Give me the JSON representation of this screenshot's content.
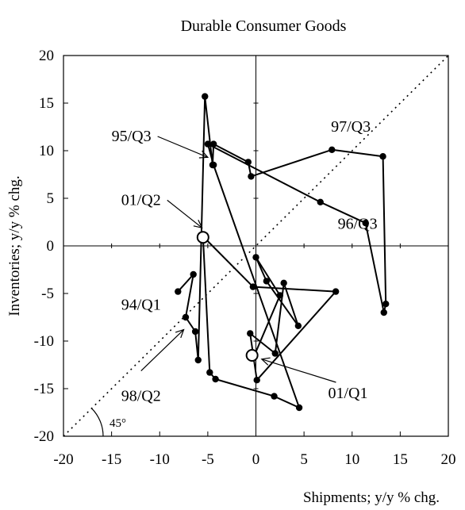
{
  "chart_data": {
    "type": "scatter",
    "title": "Durable Consumer Goods",
    "xlabel": "Shipments; y/y % chg.",
    "ylabel": "Inventories; y/y % chg.",
    "xlim": [
      -20,
      20
    ],
    "ylim": [
      -20,
      20
    ],
    "x_ticks": [
      -20,
      -15,
      -10,
      -5,
      0,
      5,
      10,
      15,
      20
    ],
    "y_ticks": [
      -20,
      -15,
      -10,
      -5,
      0,
      5,
      10,
      15,
      20
    ],
    "grid": false,
    "reference_line": {
      "slope": 1,
      "style": "dotted",
      "angle_label": "45°"
    },
    "series": [
      {
        "style": "line-with-markers",
        "x": [
          -8.1,
          -6.5,
          -7.3,
          -6.3,
          -6.0,
          -5.3,
          -4.5,
          -4.4,
          -0.8,
          -0.5,
          7.9,
          13.2,
          13.5,
          13.3,
          11.4,
          6.7,
          -5.0,
          -4.4,
          4.5,
          1.9,
          -4.2,
          -4.8,
          -5.5,
          -0.3,
          8.3,
          0.1,
          -0.6,
          2.0,
          2.9,
          4.4,
          1.1,
          0.0,
          2.5,
          -0.2,
          -0.3
        ],
        "y": [
          -4.8,
          -3.0,
          -7.5,
          -9.0,
          -12.0,
          15.7,
          8.5,
          10.7,
          8.8,
          7.3,
          10.1,
          9.4,
          -6.1,
          -7.0,
          2.4,
          4.6,
          10.7,
          8.5,
          -17.0,
          -15.8,
          -14.0,
          -13.3,
          1.0,
          -4.3,
          -4.8,
          -14.1,
          -9.2,
          -11.3,
          -3.9,
          -8.4,
          -3.7,
          -1.2,
          -5.2,
          -11.6,
          -11.5
        ]
      }
    ],
    "hollow_markers": [
      {
        "x": -5.5,
        "y": 0.9
      },
      {
        "x": -0.4,
        "y": -11.5
      }
    ],
    "annotations": [
      {
        "text": "95/Q3",
        "x": -15.0,
        "y": 11.0,
        "arrow_to": [
          -5.0,
          9.3
        ]
      },
      {
        "text": "97/Q3",
        "x": 7.8,
        "y": 12.0
      },
      {
        "text": "01/Q2",
        "x": -14.0,
        "y": 4.3,
        "arrow_to": [
          -5.6,
          1.9
        ]
      },
      {
        "text": "96/Q3",
        "x": 8.5,
        "y": 1.8
      },
      {
        "text": "94/Q1",
        "x": -14.0,
        "y": -6.7
      },
      {
        "text": "98/Q2",
        "x": -14.0,
        "y": -16.3,
        "arrow_to": [
          -7.5,
          -8.8
        ]
      },
      {
        "text": "01/Q1",
        "x": 7.5,
        "y": -16.0,
        "arrow_to": [
          0.6,
          -11.9
        ]
      }
    ]
  }
}
